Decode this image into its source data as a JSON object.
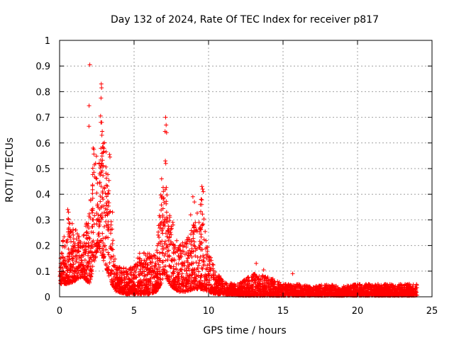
{
  "chart_data": {
    "type": "scatter",
    "title": "Day 132 of 2024, Rate Of TEC Index for receiver p817",
    "xlabel": "GPS time / hours",
    "ylabel": "ROTI / TECUs",
    "xlim": [
      0,
      25
    ],
    "ylim": [
      0,
      1
    ],
    "x_ticks": [
      "0",
      "5",
      "10",
      "15",
      "20",
      "25"
    ],
    "y_ticks": [
      "0",
      "0.1",
      "0.2",
      "0.3",
      "0.4",
      "0.5",
      "0.6",
      "0.7",
      "0.8",
      "0.9",
      "1"
    ],
    "grid": true,
    "marker": "+",
    "marker_color": "#ff0000",
    "series": [
      {
        "name": "ROTI",
        "envelope": [
          [
            0.0,
            0.05,
            0.17
          ],
          [
            0.5,
            0.05,
            0.32
          ],
          [
            1.0,
            0.06,
            0.27
          ],
          [
            1.5,
            0.08,
            0.22
          ],
          [
            2.0,
            0.05,
            0.35
          ],
          [
            2.3,
            0.12,
            0.58
          ],
          [
            2.6,
            0.2,
            0.55
          ],
          [
            2.9,
            0.15,
            0.66
          ],
          [
            3.2,
            0.1,
            0.55
          ],
          [
            3.5,
            0.05,
            0.3
          ],
          [
            3.8,
            0.02,
            0.12
          ],
          [
            4.5,
            0.01,
            0.11
          ],
          [
            5.0,
            0.01,
            0.12
          ],
          [
            5.5,
            0.01,
            0.19
          ],
          [
            6.0,
            0.01,
            0.17
          ],
          [
            6.5,
            0.02,
            0.16
          ],
          [
            6.8,
            0.05,
            0.42
          ],
          [
            7.1,
            0.08,
            0.45
          ],
          [
            7.5,
            0.04,
            0.3
          ],
          [
            8.0,
            0.02,
            0.2
          ],
          [
            8.5,
            0.02,
            0.22
          ],
          [
            9.0,
            0.03,
            0.3
          ],
          [
            9.5,
            0.03,
            0.4
          ],
          [
            10.0,
            0.02,
            0.18
          ],
          [
            10.5,
            0.01,
            0.1
          ],
          [
            11.0,
            0.01,
            0.06
          ],
          [
            12.0,
            0.005,
            0.05
          ],
          [
            13.0,
            0.005,
            0.09
          ],
          [
            14.0,
            0.005,
            0.08
          ],
          [
            15.0,
            0.005,
            0.05
          ],
          [
            16.0,
            0.005,
            0.05
          ],
          [
            17.0,
            0.005,
            0.04
          ],
          [
            18.0,
            0.005,
            0.05
          ],
          [
            19.0,
            0.005,
            0.04
          ],
          [
            20.0,
            0.005,
            0.05
          ],
          [
            21.0,
            0.005,
            0.05
          ],
          [
            22.0,
            0.005,
            0.05
          ],
          [
            23.0,
            0.005,
            0.05
          ],
          [
            24.0,
            0.005,
            0.05
          ]
        ],
        "outliers": [
          [
            2.03,
            0.905
          ],
          [
            1.98,
            0.745
          ],
          [
            1.97,
            0.665
          ],
          [
            2.8,
            0.83
          ],
          [
            2.82,
            0.815
          ],
          [
            2.78,
            0.775
          ],
          [
            2.75,
            0.705
          ],
          [
            2.77,
            0.68
          ],
          [
            2.83,
            0.68
          ],
          [
            2.86,
            0.645
          ],
          [
            2.84,
            0.63
          ],
          [
            3.35,
            0.555
          ],
          [
            3.38,
            0.545
          ],
          [
            2.25,
            0.58
          ],
          [
            2.3,
            0.575
          ],
          [
            7.12,
            0.7
          ],
          [
            7.15,
            0.67
          ],
          [
            7.08,
            0.645
          ],
          [
            7.18,
            0.64
          ],
          [
            7.1,
            0.53
          ],
          [
            7.13,
            0.52
          ],
          [
            6.85,
            0.46
          ],
          [
            9.55,
            0.43
          ],
          [
            9.6,
            0.42
          ],
          [
            9.65,
            0.41
          ],
          [
            9.5,
            0.38
          ],
          [
            9.45,
            0.36
          ],
          [
            8.95,
            0.39
          ],
          [
            9.05,
            0.37
          ],
          [
            0.55,
            0.34
          ],
          [
            0.6,
            0.33
          ],
          [
            7.6,
            0.29
          ],
          [
            7.62,
            0.28
          ],
          [
            13.2,
            0.13
          ],
          [
            15.65,
            0.09
          ],
          [
            13.7,
            0.105
          ],
          [
            8.8,
            0.32
          ],
          [
            3.55,
            0.33
          ]
        ]
      }
    ]
  }
}
